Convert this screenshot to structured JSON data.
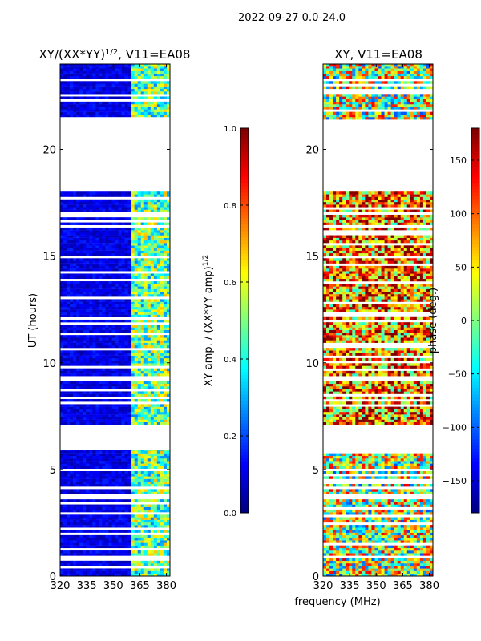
{
  "figure": {
    "suptitle": "2022-09-27 0.0-24.0",
    "common_xlabel": "frequency (MHz)"
  },
  "chart_data": [
    {
      "type": "heatmap",
      "title": "XY/(XX*YY)^1/2, V11=EA08",
      "title_base": "XY/(XX*YY)",
      "title_sup": "1/2",
      "title_tail": ", V11=EA08",
      "xlabel": "frequency (MHz)",
      "ylabel": "UT (hours)",
      "xlim": [
        320,
        382
      ],
      "ylim": [
        0,
        24
      ],
      "xticks": [
        320,
        335,
        350,
        365,
        380
      ],
      "yticks": [
        0,
        5,
        10,
        15,
        20
      ],
      "colormap": "jet",
      "colorbar": {
        "label": "XY amp. / (XX*YY amp)^1/2",
        "label_base": "XY amp. / (XX*YY amp)",
        "label_sup": "1/2",
        "range": [
          0.0,
          1.0
        ],
        "ticks": [
          0.0,
          0.2,
          0.4,
          0.6,
          0.8,
          1.0
        ],
        "tick_labels": [
          "0.0",
          "0.2",
          "0.4",
          "0.6",
          "0.8",
          "1.0"
        ]
      },
      "data_blocks_hours": [
        [
          0.0,
          5.9
        ],
        [
          7.1,
          18.1
        ],
        [
          21.4,
          24.0
        ]
      ],
      "blank_gaps_hours": [
        [
          5.9,
          7.1
        ],
        [
          18.1,
          21.4
        ]
      ],
      "typical_values": {
        "320-360 MHz": 0.1,
        "360-382 MHz": 0.45
      }
    },
    {
      "type": "heatmap",
      "title": "XY, V11=EA08",
      "xlabel": "frequency (MHz)",
      "ylabel": "",
      "xlim": [
        320,
        382
      ],
      "ylim": [
        0,
        24
      ],
      "xticks": [
        320,
        335,
        350,
        365,
        380
      ],
      "yticks": [
        0,
        5,
        10,
        15,
        20
      ],
      "colormap": "jet",
      "colorbar": {
        "label": "phase (deg.)",
        "range": [
          -180,
          180
        ],
        "ticks": [
          -150,
          -100,
          -50,
          0,
          50,
          100,
          150
        ],
        "tick_labels": [
          "−150",
          "−100",
          "−50",
          "0",
          "50",
          "100",
          "150"
        ]
      },
      "data_blocks_hours": [
        [
          0.0,
          5.9
        ],
        [
          7.1,
          18.1
        ],
        [
          21.4,
          24.0
        ]
      ],
      "blank_gaps_hours": [
        [
          5.9,
          7.1
        ],
        [
          18.1,
          21.4
        ]
      ],
      "typical_values": {
        "7-18 h": 100,
        "0-6 h": 0
      }
    }
  ]
}
